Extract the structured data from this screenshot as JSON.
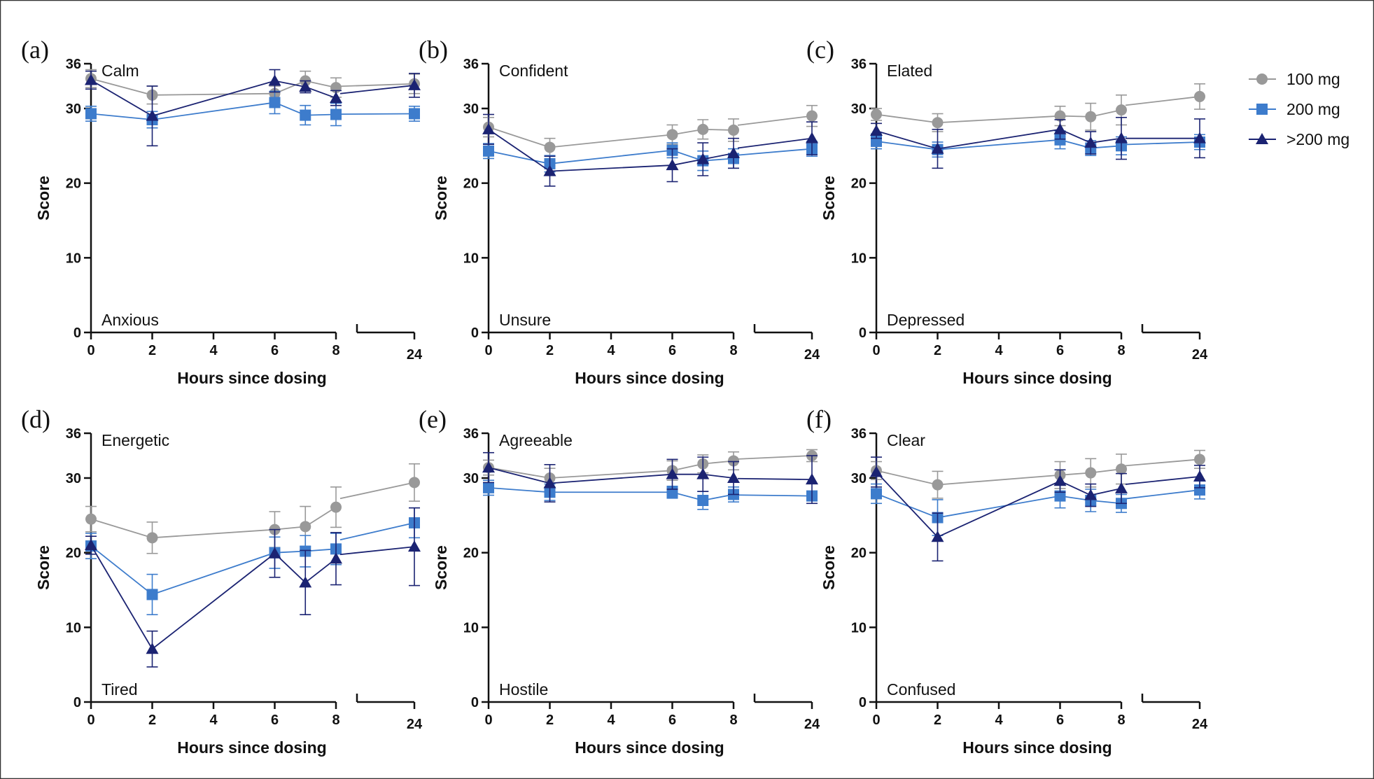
{
  "legend": [
    {
      "label": "100 mg",
      "color": "#999999",
      "marker": "circle"
    },
    {
      "label": "200 mg",
      "color": "#3d7ccc",
      "marker": "square"
    },
    {
      "label": ">200 mg",
      "color": "#1b2372",
      "marker": "triangle"
    }
  ],
  "chart_data": [
    {
      "type": "line",
      "panel_label": "(a)",
      "top_label": "Calm",
      "bottom_label": "Anxious",
      "xlabel": "Hours since dosing",
      "ylabel": "Score",
      "x": [
        0,
        2,
        6,
        7,
        8,
        24
      ],
      "x_ticks": [
        "0",
        "2",
        "4",
        "6",
        "8",
        "24"
      ],
      "y_ticks": [
        "0",
        "10",
        "20",
        "30",
        "36"
      ],
      "ylim": [
        0,
        36
      ],
      "series": [
        {
          "name": "100 mg",
          "values": [
            34.0,
            31.8,
            32.0,
            33.7,
            32.8,
            33.3
          ],
          "err": [
            1.2,
            1.2,
            1.0,
            1.3,
            1.3,
            1.3
          ]
        },
        {
          "name": "200 mg",
          "values": [
            29.3,
            28.5,
            30.8,
            29.1,
            29.2,
            29.3
          ],
          "err": [
            1.0,
            1.1,
            1.5,
            1.3,
            1.5,
            1.0
          ]
        },
        {
          "name": ">200 mg",
          "values": [
            33.8,
            29.0,
            33.7,
            32.9,
            31.4,
            33.1
          ],
          "err": [
            1.2,
            4.0,
            1.5,
            0.8,
            1.0,
            1.6
          ]
        }
      ]
    },
    {
      "type": "line",
      "panel_label": "(b)",
      "top_label": "Confident",
      "bottom_label": "Unsure",
      "xlabel": "Hours since dosing",
      "ylabel": "Score",
      "x": [
        0,
        2,
        6,
        7,
        8,
        24
      ],
      "x_ticks": [
        "0",
        "2",
        "4",
        "6",
        "8",
        "24"
      ],
      "y_ticks": [
        "0",
        "10",
        "20",
        "30",
        "36"
      ],
      "ylim": [
        0,
        36
      ],
      "series": [
        {
          "name": "100 mg",
          "values": [
            27.5,
            24.8,
            26.5,
            27.2,
            27.1,
            29.0
          ],
          "err": [
            1.3,
            1.2,
            1.3,
            1.3,
            1.5,
            1.4
          ]
        },
        {
          "name": "200 mg",
          "values": [
            24.3,
            22.6,
            24.4,
            23.0,
            23.3,
            24.6
          ],
          "err": [
            1.0,
            1.1,
            1.0,
            1.3,
            1.3,
            1.0
          ]
        },
        {
          "name": ">200 mg",
          "values": [
            27.2,
            21.6,
            22.4,
            23.2,
            24.0,
            26.0
          ],
          "err": [
            2.0,
            2.0,
            2.2,
            2.2,
            2.0,
            2.2
          ]
        }
      ]
    },
    {
      "type": "line",
      "panel_label": "(c)",
      "top_label": "Elated",
      "bottom_label": "Depressed",
      "xlabel": "Hours since dosing",
      "ylabel": "Score",
      "x": [
        0,
        2,
        6,
        7,
        8,
        24
      ],
      "x_ticks": [
        "0",
        "2",
        "4",
        "6",
        "8",
        "24"
      ],
      "y_ticks": [
        "0",
        "10",
        "20",
        "30",
        "36"
      ],
      "ylim": [
        0,
        36
      ],
      "series": [
        {
          "name": "100 mg",
          "values": [
            29.2,
            28.1,
            29.0,
            28.9,
            29.8,
            31.6
          ],
          "err": [
            0.8,
            1.2,
            1.3,
            1.8,
            2.0,
            1.7
          ]
        },
        {
          "name": "200 mg",
          "values": [
            25.6,
            24.5,
            25.8,
            24.7,
            25.0,
            25.5
          ],
          "err": [
            1.0,
            1.0,
            1.2,
            1.0,
            1.2,
            1.0
          ]
        },
        {
          "name": ">200 mg",
          "values": [
            27.0,
            24.6,
            27.2,
            25.4,
            26.0,
            26.0
          ],
          "err": [
            1.0,
            2.6,
            1.3,
            1.5,
            2.8,
            2.6
          ]
        }
      ]
    },
    {
      "type": "line",
      "panel_label": "(d)",
      "top_label": "Energetic",
      "bottom_label": "Tired",
      "xlabel": "Hours since dosing",
      "ylabel": "Score",
      "x": [
        0,
        2,
        6,
        7,
        8,
        24
      ],
      "x_ticks": [
        "0",
        "2",
        "4",
        "6",
        "8",
        "24"
      ],
      "y_ticks": [
        "0",
        "10",
        "20",
        "30",
        "36"
      ],
      "ylim": [
        0,
        36
      ],
      "series": [
        {
          "name": "100 mg",
          "values": [
            24.5,
            22.0,
            23.1,
            23.5,
            26.1,
            29.4
          ],
          "err": [
            1.7,
            2.1,
            2.4,
            2.7,
            2.7,
            2.5
          ]
        },
        {
          "name": "200 mg",
          "values": [
            20.9,
            14.4,
            20.0,
            20.2,
            20.5,
            24.0
          ],
          "err": [
            1.7,
            2.7,
            2.1,
            2.1,
            2.1,
            2.0
          ]
        },
        {
          "name": ">200 mg",
          "values": [
            21.0,
            7.1,
            19.9,
            16.0,
            19.2,
            20.8
          ],
          "err": [
            1.2,
            2.4,
            3.2,
            4.3,
            3.5,
            5.2
          ]
        }
      ]
    },
    {
      "type": "line",
      "panel_label": "(e)",
      "top_label": "Agreeable",
      "bottom_label": "Hostile",
      "xlabel": "Hours since dosing",
      "ylabel": "Score",
      "x": [
        0,
        2,
        6,
        7,
        8,
        24
      ],
      "x_ticks": [
        "0",
        "2",
        "4",
        "6",
        "8",
        "24"
      ],
      "y_ticks": [
        "0",
        "10",
        "20",
        "30",
        "36"
      ],
      "ylim": [
        0,
        36
      ],
      "series": [
        {
          "name": "100 mg",
          "values": [
            31.4,
            30.0,
            31.0,
            31.9,
            32.3,
            33.0
          ],
          "err": [
            1.0,
            1.3,
            1.3,
            1.2,
            1.2,
            0.8
          ]
        },
        {
          "name": "200 mg",
          "values": [
            28.7,
            28.1,
            28.1,
            27.0,
            27.8,
            27.6
          ],
          "err": [
            1.0,
            1.1,
            0.8,
            1.2,
            1.0,
            0.5
          ]
        },
        {
          "name": ">200 mg",
          "values": [
            31.4,
            29.3,
            30.5,
            30.5,
            30.0,
            29.8
          ],
          "err": [
            2.0,
            2.5,
            2.0,
            2.3,
            2.2,
            3.2
          ]
        }
      ]
    },
    {
      "type": "line",
      "panel_label": "(f)",
      "top_label": "Clear",
      "bottom_label": "Confused",
      "xlabel": "Hours since dosing",
      "ylabel": "Score",
      "x": [
        0,
        2,
        6,
        7,
        8,
        24
      ],
      "x_ticks": [
        "0",
        "2",
        "4",
        "6",
        "8",
        "24"
      ],
      "y_ticks": [
        "0",
        "10",
        "20",
        "30",
        "36"
      ],
      "ylim": [
        0,
        36
      ],
      "series": [
        {
          "name": "100 mg",
          "values": [
            31.0,
            29.1,
            30.4,
            30.7,
            31.2,
            32.5
          ],
          "err": [
            1.2,
            1.8,
            1.8,
            1.9,
            2.0,
            1.2
          ]
        },
        {
          "name": "200 mg",
          "values": [
            27.9,
            24.7,
            27.6,
            27.0,
            26.6,
            28.4
          ],
          "err": [
            1.3,
            2.4,
            1.6,
            1.5,
            1.2,
            1.2
          ]
        },
        {
          "name": ">200 mg",
          "values": [
            30.8,
            22.1,
            29.6,
            27.7,
            28.6,
            30.2
          ],
          "err": [
            2.0,
            3.2,
            1.5,
            1.5,
            2.0,
            1.5
          ]
        }
      ]
    }
  ]
}
